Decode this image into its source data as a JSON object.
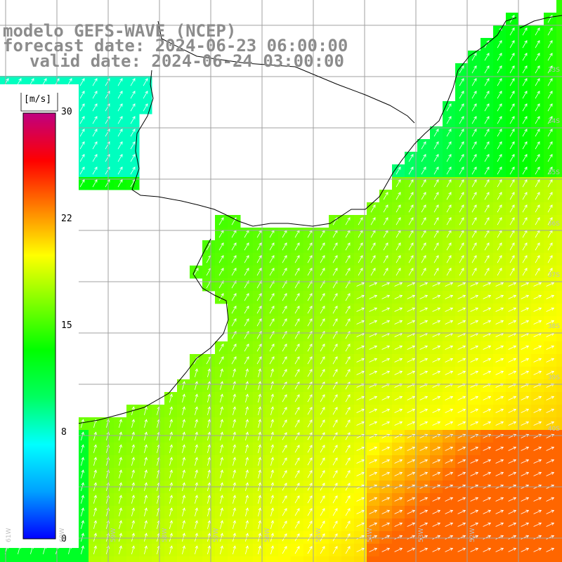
{
  "title": {
    "line1": "modelo GEFS-WAVE (NCEP)",
    "line2": "forecast date: 2024-06-23 06:00:00",
    "line3": "valid date: 2024-06-24 03:00:00"
  },
  "colorbar": {
    "unit": "[m/s]",
    "ticks": [
      "30",
      "22",
      "15",
      "8",
      "0"
    ],
    "tick_values": [
      30,
      22,
      15,
      8,
      0
    ],
    "range": [
      0,
      30
    ],
    "colors": [
      "#0000ff",
      "#00a0ff",
      "#00ffff",
      "#00ff60",
      "#00ff00",
      "#80ff00",
      "#ffff00",
      "#ff8000",
      "#ff0000",
      "#c00080"
    ]
  },
  "lat_labels": [
    "33S",
    "34S",
    "35S",
    "36S",
    "37S",
    "38S",
    "39S",
    "40S"
  ],
  "lon_labels": [
    "61W",
    "60W",
    "59W",
    "58W",
    "57W",
    "56W",
    "55W",
    "54W",
    "53W",
    "52W"
  ],
  "colors": {
    "grid": "#a0a0a0",
    "coast": "#000000",
    "arrow": "#ffffff",
    "title": "#8c8c8c"
  },
  "icons": {
    "wind_arrow": "arrow-icon"
  }
}
